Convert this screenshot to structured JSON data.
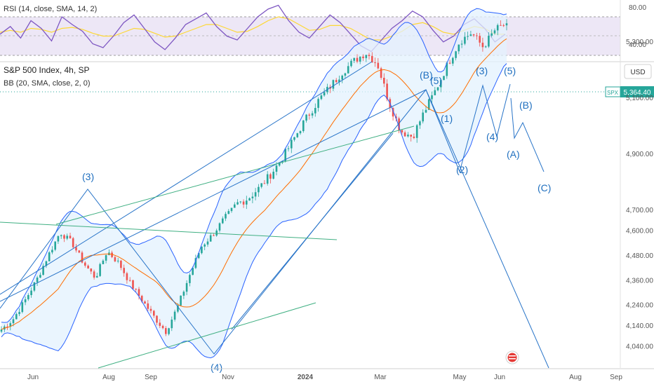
{
  "rsi_pane": {
    "legend": "RSI (14, close, SMA, 14, 2)",
    "levels": [
      "80.00",
      "40.00"
    ]
  },
  "main_pane": {
    "title": "S&P 500 Index, 4h, SP",
    "indicator": "BB (20, SMA, close, 2, 0)",
    "currency": "USD",
    "symbol_tag": "SPX",
    "last_price": "5,364.40",
    "price_ticks": [
      "5,300.00",
      "5,100.00",
      "4,900.00",
      "4,700.00",
      "4,600.00",
      "4,480.00",
      "4,360.00",
      "4,240.00",
      "4,140.00",
      "4,040.00"
    ],
    "time_ticks": [
      "Jun",
      "Aug",
      "Sep",
      "Nov",
      "2024",
      "Mar",
      "May",
      "Jun",
      "Aug",
      "Sep"
    ],
    "wave_labels": [
      "(3)",
      "(B)",
      "(5)",
      "(3)",
      "(5)",
      "(1)",
      "(B)",
      "(4)",
      "(A)",
      "(2)",
      "(C)",
      "(4)"
    ]
  },
  "colors": {
    "candle_up": "#26a69a",
    "candle_down": "#ef5350",
    "bb_band": "#2962ff",
    "bb_basis": "#ff6d00",
    "rsi_line": "#7e57c2",
    "rsi_ma": "#fdd835",
    "wave_lines": "#2874c8",
    "trend_green": "#3faf82",
    "label_blue": "#1f6fbf",
    "axis_text": "#555555"
  },
  "chart_data": [
    {
      "type": "line",
      "title": "RSI (14, close, SMA, 14, 2)",
      "ylim": [
        20,
        90
      ],
      "levels": [
        70,
        30
      ],
      "series": [
        {
          "name": "RSI",
          "values": [
            52,
            60,
            48,
            66,
            58,
            45,
            70,
            62,
            55,
            42,
            38,
            50,
            64,
            72,
            58,
            44,
            36,
            48,
            62,
            68,
            74,
            60,
            50,
            46,
            58,
            70,
            78,
            82,
            66,
            54,
            48,
            60,
            72,
            64,
            52,
            40,
            34,
            46,
            58,
            66,
            76,
            70,
            56,
            44,
            50,
            62,
            68,
            58,
            44,
            52
          ]
        },
        {
          "name": "SMA",
          "values": [
            54,
            56,
            54,
            58,
            57,
            54,
            58,
            59,
            57,
            53,
            50,
            50,
            54,
            58,
            57,
            53,
            49,
            50,
            54,
            58,
            62,
            62,
            58,
            54,
            55,
            60,
            66,
            70,
            68,
            62,
            56,
            57,
            61,
            61,
            58,
            52,
            46,
            46,
            50,
            55,
            62,
            64,
            60,
            54,
            52,
            56,
            60,
            58,
            52,
            52
          ]
        }
      ]
    },
    {
      "type": "candlestick",
      "title": "S&P 500 Index, 4h, SP",
      "x": [
        "2023-05-01",
        "2023-06-01",
        "2023-07-01",
        "2023-08-01",
        "2023-09-01",
        "2023-10-01",
        "2023-11-01",
        "2023-12-01",
        "2024-01-01",
        "2024-02-01",
        "2024-03-01",
        "2024-04-01",
        "2024-05-01",
        "2024-06-01"
      ],
      "close_path": [
        4120,
        4170,
        4260,
        4360,
        4480,
        4590,
        4540,
        4440,
        4370,
        4500,
        4440,
        4340,
        4260,
        4180,
        4110,
        4230,
        4380,
        4520,
        4580,
        4660,
        4720,
        4740,
        4780,
        4830,
        4890,
        4960,
        5030,
        5090,
        5140,
        5190,
        5230,
        5260,
        5220,
        5080,
        4980,
        4960,
        5050,
        5130,
        5220,
        5300,
        5330,
        5280,
        5340,
        5364.4
      ],
      "last_price": 5364.4,
      "ylim": [
        4000,
        5450
      ],
      "indicator": "BB (20, SMA, close, 2, 0)"
    }
  ]
}
